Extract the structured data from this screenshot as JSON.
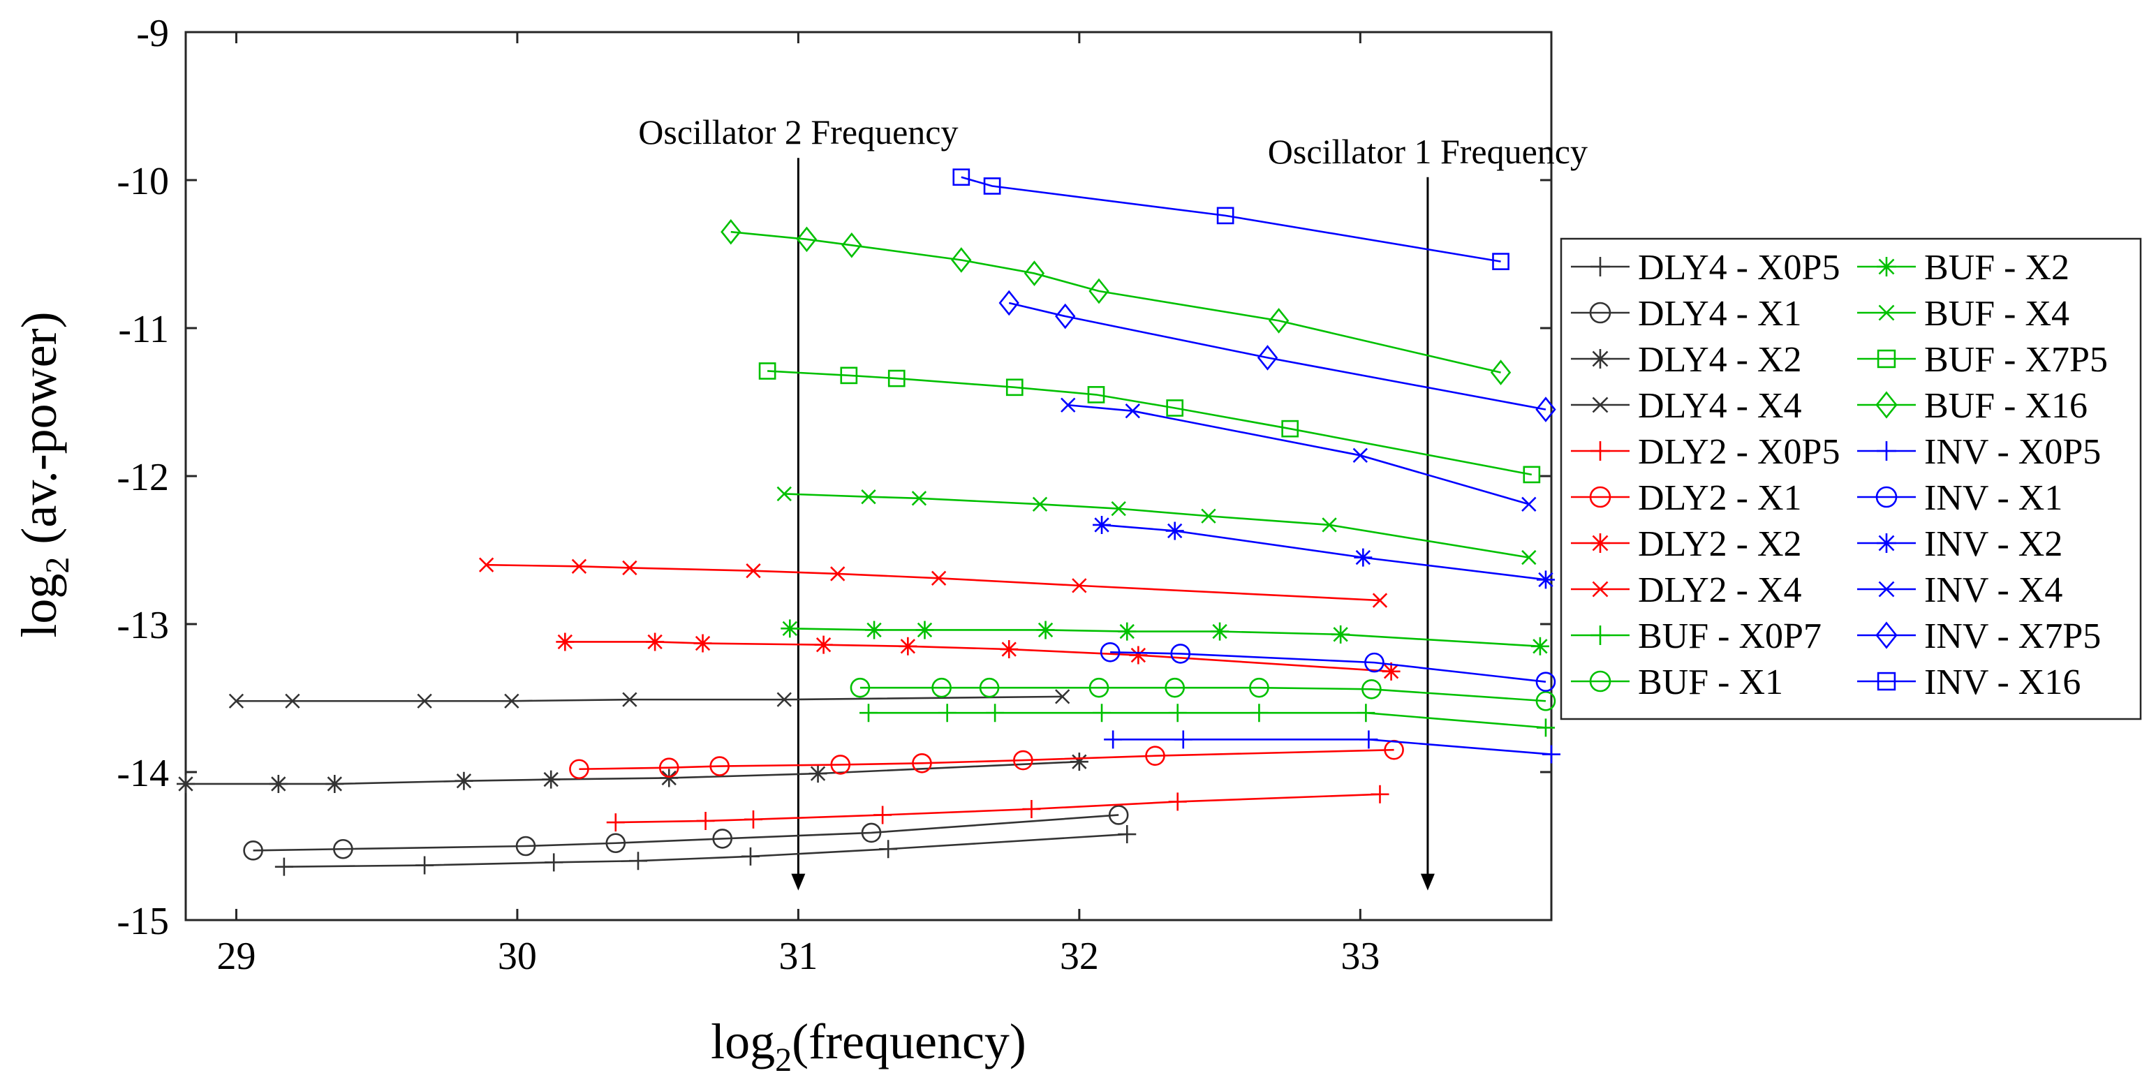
{
  "chart_data": {
    "type": "line",
    "title": "",
    "xlabel": "log2(frequency)",
    "ylabel": "log2 (av.-power)",
    "xlabel_main": "log",
    "xlabel_sub": "2",
    "xlabel_rest": "(frequency)",
    "ylabel_main": "log",
    "ylabel_sub": "2",
    "ylabel_rest": " (av.-power)",
    "xlim": [
      28.82,
      33.68
    ],
    "ylim": [
      -15,
      -9
    ],
    "xticks": [
      29,
      30,
      31,
      32,
      33
    ],
    "yticks": [
      -9,
      -10,
      -11,
      -12,
      -13,
      -14,
      -15
    ],
    "xtick_labels": [
      "29",
      "30",
      "31",
      "32",
      "33"
    ],
    "ytick_labels": [
      "-9",
      "-10",
      "-11",
      "-12",
      "-13",
      "-14",
      "-15"
    ],
    "grid": false,
    "legend_position": "outside-right",
    "annotations": [
      {
        "text": "Oscillator 2 Frequency",
        "x": 31.0,
        "y_start": -9.85,
        "y_end": -14.8
      },
      {
        "text": "Oscillator 1 Frequency",
        "x": 33.24,
        "y_start": -9.98,
        "y_end": -14.8
      }
    ],
    "series": [
      {
        "name": "DLY4 - X0P5",
        "color": "#333333",
        "marker": "plus",
        "x": [
          29.17,
          29.67,
          30.13,
          30.43,
          30.83,
          31.32,
          32.17
        ],
        "y": [
          -14.64,
          -14.63,
          -14.61,
          -14.6,
          -14.57,
          -14.52,
          -14.42
        ]
      },
      {
        "name": "DLY4 - X1",
        "color": "#333333",
        "marker": "circle",
        "x": [
          29.06,
          29.38,
          30.03,
          30.35,
          30.73,
          31.26,
          32.14
        ],
        "y": [
          -14.53,
          -14.52,
          -14.5,
          -14.48,
          -14.45,
          -14.41,
          -14.29
        ]
      },
      {
        "name": "DLY4 - X2",
        "color": "#333333",
        "marker": "asterisk",
        "x": [
          28.82,
          29.15,
          29.35,
          29.81,
          30.12,
          30.54,
          31.07,
          32.0
        ],
        "y": [
          -14.08,
          -14.08,
          -14.08,
          -14.06,
          -14.05,
          -14.04,
          -14.01,
          -13.93
        ]
      },
      {
        "name": "DLY4 - X4",
        "color": "#333333",
        "marker": "x",
        "x": [
          29.0,
          29.2,
          29.67,
          29.98,
          30.4,
          30.95,
          31.94
        ],
        "y": [
          -13.52,
          -13.52,
          -13.52,
          -13.52,
          -13.51,
          -13.51,
          -13.49
        ]
      },
      {
        "name": "DLY2 - X0P5",
        "color": "#ff0000",
        "marker": "plus",
        "x": [
          30.35,
          30.67,
          30.84,
          31.3,
          31.83,
          32.35,
          33.07
        ],
        "y": [
          -14.34,
          -14.33,
          -14.32,
          -14.29,
          -14.25,
          -14.2,
          -14.15
        ]
      },
      {
        "name": "DLY2 - X1",
        "color": "#ff0000",
        "marker": "circle",
        "x": [
          30.22,
          30.54,
          30.72,
          31.15,
          31.44,
          31.8,
          32.27,
          33.12
        ],
        "y": [
          -13.98,
          -13.97,
          -13.96,
          -13.95,
          -13.94,
          -13.92,
          -13.89,
          -13.85
        ]
      },
      {
        "name": "DLY2 - X2",
        "color": "#ff0000",
        "marker": "asterisk",
        "x": [
          30.17,
          30.49,
          30.66,
          31.09,
          31.39,
          31.75,
          32.21,
          33.11
        ],
        "y": [
          -13.12,
          -13.12,
          -13.13,
          -13.14,
          -13.15,
          -13.17,
          -13.21,
          -13.32
        ]
      },
      {
        "name": "DLY2 - X4",
        "color": "#ff0000",
        "marker": "x",
        "x": [
          29.89,
          30.22,
          30.4,
          30.84,
          31.14,
          31.5,
          32.0,
          33.07
        ],
        "y": [
          -12.6,
          -12.61,
          -12.62,
          -12.64,
          -12.66,
          -12.69,
          -12.74,
          -12.84
        ]
      },
      {
        "name": "BUF - X0P7",
        "color": "#00c000",
        "marker": "plus",
        "x": [
          31.25,
          31.53,
          31.7,
          32.08,
          32.35,
          32.64,
          33.02,
          33.66
        ],
        "y": [
          -13.6,
          -13.6,
          -13.6,
          -13.6,
          -13.6,
          -13.6,
          -13.6,
          -13.7
        ]
      },
      {
        "name": "BUF - X1",
        "color": "#00c000",
        "marker": "circle",
        "x": [
          31.22,
          31.51,
          31.68,
          32.07,
          32.34,
          32.64,
          33.04,
          33.66
        ],
        "y": [
          -13.43,
          -13.43,
          -13.43,
          -13.43,
          -13.43,
          -13.43,
          -13.44,
          -13.52
        ]
      },
      {
        "name": "BUF - X2",
        "color": "#00c000",
        "marker": "asterisk",
        "x": [
          30.97,
          31.27,
          31.45,
          31.88,
          32.17,
          32.5,
          32.93,
          33.64
        ],
        "y": [
          -13.03,
          -13.04,
          -13.04,
          -13.04,
          -13.05,
          -13.05,
          -13.07,
          -13.15
        ]
      },
      {
        "name": "BUF - X4",
        "color": "#00c000",
        "marker": "x",
        "x": [
          30.95,
          31.25,
          31.43,
          31.86,
          32.14,
          32.46,
          32.89,
          33.6
        ],
        "y": [
          -12.12,
          -12.14,
          -12.15,
          -12.19,
          -12.22,
          -12.27,
          -12.33,
          -12.55
        ]
      },
      {
        "name": "BUF - X7P5",
        "color": "#00c000",
        "marker": "square",
        "x": [
          30.89,
          31.18,
          31.35,
          31.77,
          32.06,
          32.34,
          32.75,
          33.61
        ],
        "y": [
          -11.29,
          -11.32,
          -11.34,
          -11.4,
          -11.45,
          -11.54,
          -11.68,
          -11.99
        ]
      },
      {
        "name": "BUF - X16",
        "color": "#00c000",
        "marker": "diamond",
        "x": [
          30.76,
          31.03,
          31.19,
          31.58,
          31.84,
          32.07,
          32.71,
          33.5
        ],
        "y": [
          -10.35,
          -10.4,
          -10.44,
          -10.54,
          -10.63,
          -10.75,
          -10.95,
          -11.3
        ]
      },
      {
        "name": "INV - X0P5",
        "color": "#0000ff",
        "marker": "plus",
        "x": [
          32.12,
          32.37,
          33.03,
          33.68
        ],
        "y": [
          -13.78,
          -13.78,
          -13.78,
          -13.88
        ]
      },
      {
        "name": "INV - X1",
        "color": "#0000ff",
        "marker": "circle",
        "x": [
          32.11,
          32.36,
          33.05,
          33.66
        ],
        "y": [
          -13.19,
          -13.2,
          -13.26,
          -13.39
        ]
      },
      {
        "name": "INV - X2",
        "color": "#0000ff",
        "marker": "asterisk",
        "x": [
          32.08,
          32.34,
          33.01,
          33.66
        ],
        "y": [
          -12.33,
          -12.37,
          -12.55,
          -12.7
        ]
      },
      {
        "name": "INV - X4",
        "color": "#0000ff",
        "marker": "x",
        "x": [
          31.96,
          32.19,
          33.0,
          33.6
        ],
        "y": [
          -11.52,
          -11.56,
          -11.86,
          -12.19
        ]
      },
      {
        "name": "INV - X7P5",
        "color": "#0000ff",
        "marker": "diamond",
        "x": [
          31.75,
          31.95,
          32.67,
          33.66
        ],
        "y": [
          -10.83,
          -10.92,
          -11.2,
          -11.55
        ]
      },
      {
        "name": "INV - X16",
        "color": "#0000ff",
        "marker": "square",
        "x": [
          31.58,
          31.69,
          32.52,
          33.5
        ],
        "y": [
          -9.98,
          -10.04,
          -10.24,
          -10.55
        ]
      }
    ]
  }
}
